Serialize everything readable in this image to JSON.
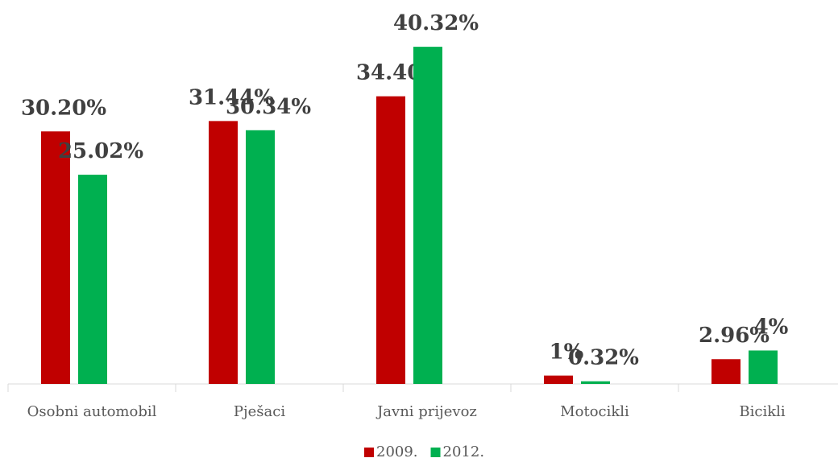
{
  "chart_data": {
    "type": "bar",
    "categories": [
      "Osobni automobil",
      "Pješaci",
      "Javni prijevoz",
      "Motocikli",
      "Bicikli"
    ],
    "series": [
      {
        "name": "2009.",
        "color": "#c00000",
        "values": [
          30.2,
          31.44,
          34.4,
          1,
          2.96
        ],
        "value_labels": [
          "30.20%",
          "31.44%",
          "34.40%",
          "1%",
          "2.96%"
        ]
      },
      {
        "name": "2012.",
        "color": "#00b050",
        "values": [
          25.02,
          30.34,
          40.32,
          0.32,
          4
        ],
        "value_labels": [
          "25.02%",
          "30.34%",
          "40.32%",
          "0.32%",
          "4%"
        ]
      }
    ],
    "ylim": [
      0,
      45
    ]
  }
}
